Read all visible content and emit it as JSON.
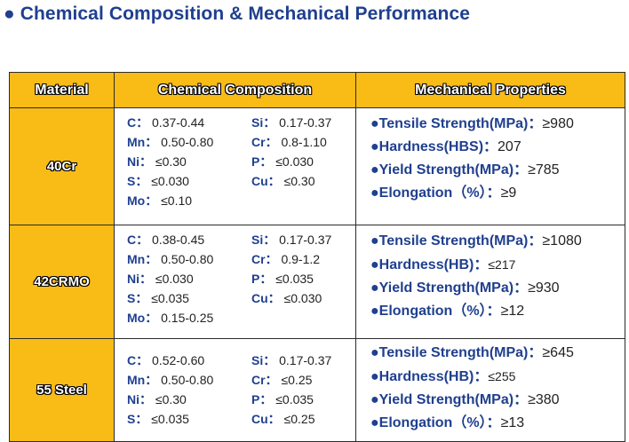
{
  "title": "● Chemical Composition & Mechanical Performance",
  "headers": {
    "material": "Material",
    "composition": "Chemical Composition",
    "properties": "Mechanical Properties"
  },
  "rows": [
    {
      "material": "40Cr",
      "composition": [
        {
          "el": "C：",
          "val": "0.37-0.44"
        },
        {
          "el": "Si：",
          "val": "0.17-0.37"
        },
        {
          "el": "Mn：",
          "val": "0.50-0.80"
        },
        {
          "el": "Cr：",
          "val": "0.8-1.10"
        },
        {
          "el": "Ni：",
          "val": "≤0.30"
        },
        {
          "el": "P：",
          "val": "≤0.030"
        },
        {
          "el": "S：",
          "val": "≤0.030"
        },
        {
          "el": "Cu：",
          "val": "≤0.30"
        },
        {
          "el": "Mo：",
          "val": "≤0.10"
        }
      ],
      "properties": [
        {
          "label": "●Tensile Strength(MPa)：",
          "value": "≥980"
        },
        {
          "label": "●Hardness(HBS)：",
          "value": "207"
        },
        {
          "label": "●Yield Strength(MPa)：",
          "value": "≥785"
        },
        {
          "label": "●Elongation（%）：",
          "value": "≥9"
        }
      ]
    },
    {
      "material": "42CRMO",
      "composition": [
        {
          "el": "C：",
          "val": "0.38-0.45"
        },
        {
          "el": "Si：",
          "val": "0.17-0.37"
        },
        {
          "el": "Mn：",
          "val": "0.50-0.80"
        },
        {
          "el": "Cr：",
          "val": "0.9-1.2"
        },
        {
          "el": "Ni：",
          "val": "≤0.030"
        },
        {
          "el": "P：",
          "val": "≤0.035"
        },
        {
          "el": "S：",
          "val": "≤0.035"
        },
        {
          "el": "Cu：",
          "val": "≤0.030"
        },
        {
          "el": "Mo：",
          "val": "0.15-0.25"
        }
      ],
      "properties": [
        {
          "label": "●Tensile Strength(MPa)：",
          "value": "≥1080"
        },
        {
          "label": "●Hardness(HB)：",
          "value": "≤217"
        },
        {
          "label": "●Yield Strength(MPa)：",
          "value": "≥930"
        },
        {
          "label": "●Elongation（%）：",
          "value": "≥12"
        }
      ]
    },
    {
      "material": "55 Steel",
      "composition": [
        {
          "el": "C：",
          "val": "0.52-0.60"
        },
        {
          "el": "Si：",
          "val": "0.17-0.37"
        },
        {
          "el": "Mn：",
          "val": "0.50-0.80"
        },
        {
          "el": "Cr：",
          "val": "≤0.25"
        },
        {
          "el": "Ni：",
          "val": "≤0.30"
        },
        {
          "el": "P：",
          "val": "≤0.035"
        },
        {
          "el": "S：",
          "val": "≤0.035"
        },
        {
          "el": "Cu：",
          "val": "≤0.25"
        }
      ],
      "properties": [
        {
          "label": "●Tensile Strength(MPa)：",
          "value": "≥645"
        },
        {
          "label": "●Hardness(HB)：",
          "value": "≤255"
        },
        {
          "label": "●Yield Strength(MPa)：",
          "value": "≥380"
        },
        {
          "label": "●Elongation（%）：",
          "value": "≥13"
        }
      ]
    }
  ],
  "colors": {
    "header_fill": "#f9bb16",
    "title_text": "#1f3f8f",
    "label_text": "#1f3f8f"
  }
}
